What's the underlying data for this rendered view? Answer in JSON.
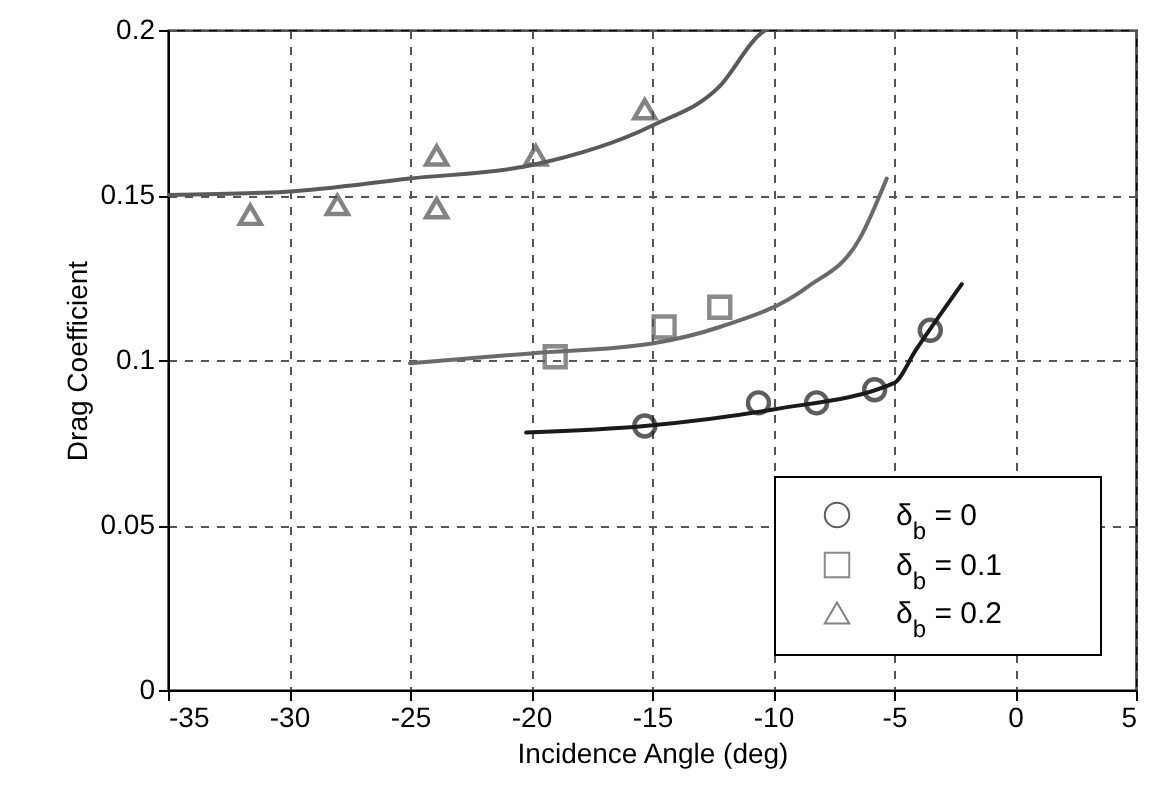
{
  "chart_data": {
    "type": "scatter",
    "xlabel": "Incidence Angle (deg)",
    "ylabel": "Drag Coefficient",
    "xlim": [
      -35,
      5
    ],
    "ylim": [
      0,
      0.2
    ],
    "xticks": [
      -35,
      -30,
      -25,
      -20,
      -15,
      -10,
      -5,
      0,
      5
    ],
    "yticks": [
      0,
      0.05,
      0.1,
      0.15,
      0.2
    ],
    "grid": true,
    "legend": "bottom right",
    "series": [
      {
        "name": "δ$_{b}$ = 0",
        "type": "scatter",
        "marker": "circle",
        "color": "#1a1a1a",
        "x": [
          -15.3,
          -10.6,
          -8.2,
          -5.8,
          -3.5
        ],
        "values": [
          0.08,
          0.087,
          0.087,
          0.091,
          0.109
        ]
      },
      {
        "name": "δ$_{b}$ = 0.1",
        "type": "scatter",
        "marker": "square",
        "color": "#5a5a5a",
        "x": [
          -19.0,
          -14.5,
          -12.2
        ],
        "values": [
          0.101,
          0.11,
          0.116
        ]
      },
      {
        "name": "δ$_{b}$ = 0.2",
        "type": "scatter",
        "marker": "triangle",
        "color": "#505050",
        "x": [
          -31.6,
          -28.0,
          -23.9,
          -23.9,
          -19.8,
          -15.3
        ],
        "values": [
          0.144,
          0.147,
          0.146,
          0.162,
          0.162,
          0.176
        ]
      },
      {
        "type": "line",
        "color": "#1a1a1a",
        "x": [
          -20.2,
          -15.3,
          -10,
          -5,
          -4.1,
          -2.2
        ],
        "values": [
          0.078,
          0.08,
          0.085,
          0.093,
          0.103,
          0.123
        ]
      },
      {
        "type": "line",
        "color": "#6a6a6a",
        "x": [
          -25,
          -20,
          -15,
          -12.2,
          -8.6,
          -6.4,
          -5.3
        ],
        "values": [
          0.099,
          0.102,
          0.105,
          0.11,
          0.122,
          0.137,
          0.155
        ]
      },
      {
        "type": "line",
        "color": "#5a5a5a",
        "x": [
          -35,
          -30.1,
          -25,
          -20,
          -15,
          -12.2,
          -10.5,
          -10.3
        ],
        "values": [
          0.15,
          0.151,
          0.155,
          0.159,
          0.171,
          0.183,
          0.199,
          0.2
        ]
      }
    ]
  }
}
